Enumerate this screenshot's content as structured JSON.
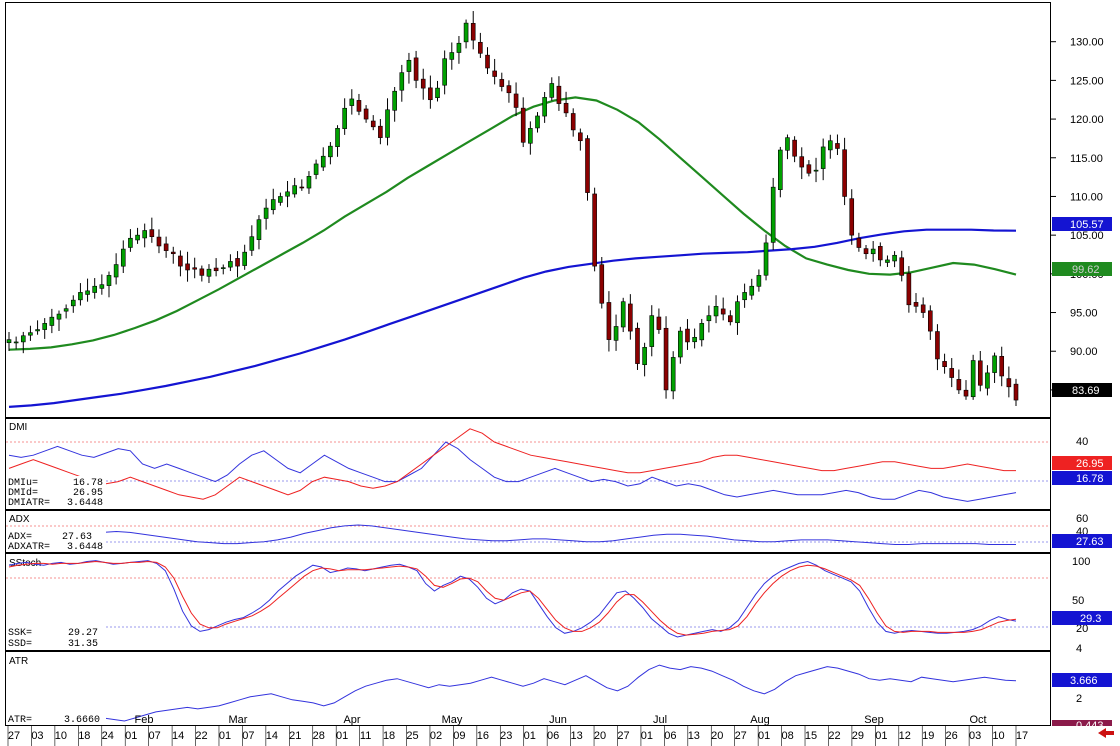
{
  "chart_data": [
    {
      "type": "candlestick",
      "panel": "price",
      "ylim": [
        81.5,
        135
      ],
      "y_ticks": [
        "130.00",
        "125.00",
        "120.00",
        "115.00",
        "110.00",
        "105.00",
        "100.00",
        "95.00",
        "90.00",
        "85.00"
      ],
      "last_price_label": "83.69",
      "colors": {
        "up": "#00a000",
        "down": "#8b0000",
        "ma_short": "#1f8a1f",
        "ma_long": "#1414d2"
      },
      "ohlc_close": [
        91.5,
        91.2,
        92.0,
        92.4,
        92.8,
        93.6,
        94.4,
        94.8,
        95.5,
        96.6,
        97.6,
        97.8,
        98.4,
        98.6,
        99.8,
        101.2,
        103.2,
        104.6,
        105.0,
        105.6,
        104.8,
        103.6,
        103.0,
        102.6,
        101.0,
        100.5,
        100.6,
        99.8,
        100.6,
        100.4,
        100.8,
        101.6,
        101.0,
        102.8,
        104.8,
        107.0,
        108.5,
        109.6,
        110.0,
        110.6,
        111.4,
        111.2,
        112.6,
        114.2,
        115.2,
        116.5,
        118.8,
        121.4,
        122.6,
        121.0,
        120.0,
        119.0,
        117.6,
        121.2,
        123.6,
        126.0,
        127.6,
        125.0,
        124.0,
        122.5,
        124.0,
        127.8,
        128.6,
        129.8,
        132.4,
        130.2,
        128.5,
        126.6,
        125.5,
        124.2,
        123.4,
        121.5,
        117.0,
        118.8,
        120.4,
        122.8,
        124.6,
        122.0,
        120.8,
        118.6,
        117.2,
        110.5,
        101.0,
        96.2,
        91.5,
        93.2,
        96.4,
        92.6,
        88.4,
        90.5,
        94.6,
        92.8,
        85.0,
        89.2,
        92.6,
        91.2,
        91.8,
        93.6,
        94.6,
        95.8,
        94.8,
        93.8,
        96.4,
        97.6,
        98.4,
        99.8,
        104.0,
        111.2,
        116.0,
        117.6,
        115.2,
        113.8,
        113.0,
        113.4,
        116.4,
        117.2,
        116.2,
        110.0,
        105.0,
        103.4,
        102.6,
        103.2,
        101.8,
        101.8,
        102.4,
        99.8,
        96.0,
        95.8,
        95.0,
        92.6,
        89.0,
        88.0,
        86.6,
        85.0,
        84.2,
        88.8,
        85.6,
        87.2,
        89.4,
        86.8,
        85.4,
        83.69
      ],
      "ma_short_last": "99.62",
      "ma_long_last": "105.57",
      "ma_short": [
        90.2,
        90.3,
        90.5,
        90.9,
        91.4,
        92.1,
        93.0,
        94.0,
        95.2,
        96.6,
        98.0,
        99.5,
        101.0,
        102.5,
        104.0,
        105.6,
        107.4,
        109.0,
        110.6,
        112.4,
        114.0,
        115.6,
        117.2,
        118.8,
        120.4,
        121.6,
        122.4,
        122.8,
        122.4,
        121.2,
        119.6,
        117.4,
        115.0,
        112.6,
        110.2,
        107.8,
        105.6,
        103.6,
        102.0,
        101.2,
        100.5,
        100.0,
        99.9,
        100.2,
        100.8,
        101.4,
        101.2,
        100.6,
        99.9
      ],
      "ma_long": [
        82.8,
        83.0,
        83.3,
        83.7,
        84.1,
        84.5,
        85.0,
        85.5,
        86.1,
        86.7,
        87.4,
        88.1,
        88.9,
        89.7,
        90.6,
        91.5,
        92.5,
        93.5,
        94.5,
        95.5,
        96.5,
        97.5,
        98.5,
        99.5,
        100.3,
        100.9,
        101.3,
        101.7,
        102.0,
        102.2,
        102.4,
        102.6,
        102.7,
        102.8,
        103.0,
        103.2,
        103.5,
        104.0,
        104.6,
        105.1,
        105.5,
        105.7,
        105.7,
        105.7,
        105.6,
        105.57
      ]
    },
    {
      "type": "line",
      "panel": "dmi",
      "series": [
        {
          "name": "DMI",
          "color": "#3333dd",
          "values": [
            34,
            33,
            34,
            36,
            38,
            36,
            34,
            33,
            35,
            37,
            36,
            30,
            28,
            30,
            28,
            26,
            24,
            22,
            25,
            30,
            34,
            36,
            32,
            28,
            26,
            30,
            34,
            31,
            28,
            26,
            24,
            22,
            22,
            25,
            28,
            34,
            40,
            37,
            32,
            28,
            24,
            22,
            22,
            24,
            26,
            28,
            26,
            24,
            22,
            23,
            22,
            20,
            21,
            24,
            22,
            20,
            21,
            20,
            18,
            16,
            15,
            16,
            17,
            18,
            17,
            16,
            16,
            16,
            17,
            18,
            17,
            15,
            14,
            14,
            16,
            18,
            17,
            15,
            14,
            13,
            14,
            15,
            16,
            17
          ]
        },
        {
          "name": "DMI",
          "color": "#ee2222",
          "values": [
            28,
            30,
            32,
            30,
            28,
            26,
            24,
            22,
            21,
            22,
            24,
            22,
            20,
            18,
            16,
            15,
            14,
            16,
            20,
            24,
            22,
            20,
            18,
            16,
            18,
            22,
            24,
            23,
            22,
            20,
            19,
            20,
            22,
            26,
            30,
            34,
            38,
            42,
            46,
            44,
            40,
            38,
            36,
            34,
            33,
            32,
            31,
            30,
            29,
            28,
            27,
            26,
            26,
            27,
            28,
            29,
            30,
            31,
            33,
            34,
            34,
            33,
            32,
            31,
            30,
            29,
            28,
            27,
            27,
            28,
            29,
            30,
            31,
            31,
            30,
            29,
            28,
            28,
            29,
            30,
            29,
            28,
            27,
            27
          ]
        }
      ],
      "level": "40",
      "ylim": [
        10,
        50
      ],
      "readouts": {
        "DMIu": "16.78",
        "DMId": "26.95",
        "DMIATR": "3.6448"
      },
      "badges": {
        "red": "26.95",
        "blue": "16.78"
      }
    },
    {
      "type": "line",
      "panel": "adx",
      "series": [
        {
          "name": "ADX",
          "color": "#3333dd",
          "values": [
            26,
            28,
            30,
            32,
            34,
            36,
            38,
            40,
            41,
            40,
            38,
            36,
            34,
            32,
            30,
            29,
            28,
            28,
            29,
            30,
            32,
            35,
            39,
            42,
            45,
            47,
            48,
            47,
            45,
            43,
            41,
            39,
            37,
            35,
            33,
            32,
            31,
            31,
            32,
            33,
            33,
            32,
            31,
            30,
            30,
            31,
            33,
            35,
            37,
            38,
            38,
            37,
            36,
            34,
            32,
            31,
            30,
            30,
            31,
            32,
            32,
            32,
            31,
            30,
            29,
            28,
            27,
            27,
            28,
            28,
            28,
            28,
            28,
            27,
            27,
            27
          ]
        }
      ],
      "y_ticks": [
        "60",
        "40",
        "20"
      ],
      "ylim": [
        20,
        62
      ],
      "readouts": {
        "ADX": "27.63",
        "ADXATR": "3.6448"
      },
      "badge": "27.63"
    },
    {
      "type": "line",
      "panel": "sstoch",
      "series": [
        {
          "name": "SSK",
          "color": "#3333dd",
          "values": [
            90,
            92,
            93,
            91,
            90,
            92,
            93,
            91,
            92,
            94,
            95,
            93,
            91,
            92,
            93,
            94,
            95,
            92,
            84,
            64,
            40,
            24,
            18,
            20,
            24,
            28,
            31,
            33,
            38,
            44,
            52,
            62,
            70,
            78,
            84,
            90,
            88,
            82,
            84,
            87,
            86,
            84,
            86,
            88,
            90,
            91,
            88,
            84,
            70,
            62,
            68,
            72,
            78,
            75,
            66,
            54,
            48,
            52,
            60,
            64,
            62,
            48,
            34,
            22,
            16,
            18,
            22,
            28,
            36,
            48,
            60,
            62,
            54,
            44,
            32,
            24,
            16,
            12,
            14,
            16,
            18,
            20,
            18,
            22,
            30,
            44,
            58,
            70,
            78,
            84,
            88,
            92,
            94,
            90,
            84,
            80,
            76,
            72,
            62,
            44,
            28,
            18,
            16,
            18,
            19,
            18,
            17,
            16,
            16,
            17,
            18,
            20,
            24,
            30,
            34,
            31,
            29.27
          ]
        },
        {
          "name": "SSD",
          "color": "#ee2222",
          "values": [
            88,
            90,
            91,
            92,
            92,
            91,
            92,
            92,
            92,
            93,
            94,
            93,
            92,
            92,
            93,
            93,
            94,
            93,
            88,
            76,
            56,
            38,
            26,
            22,
            22,
            26,
            29,
            32,
            35,
            40,
            46,
            54,
            62,
            70,
            78,
            84,
            87,
            86,
            84,
            85,
            85,
            85,
            86,
            87,
            88,
            89,
            88,
            86,
            78,
            68,
            66,
            70,
            75,
            76,
            72,
            62,
            54,
            52,
            56,
            60,
            62,
            54,
            42,
            30,
            22,
            18,
            18,
            22,
            28,
            38,
            50,
            58,
            58,
            50,
            40,
            30,
            22,
            16,
            14,
            15,
            16,
            18,
            19,
            20,
            24,
            34,
            48,
            60,
            70,
            78,
            84,
            88,
            90,
            89,
            86,
            82,
            78,
            74,
            68,
            54,
            38,
            24,
            18,
            17,
            18,
            18,
            18,
            17,
            17,
            17,
            17,
            18,
            20,
            24,
            28,
            30,
            31.35
          ]
        }
      ],
      "y_ticks": [
        "100",
        "50",
        "20"
      ],
      "ylim": [
        0,
        100
      ],
      "readouts": {
        "SSK": "29.27",
        "SSD": "31.35"
      },
      "badge": "29.3"
    },
    {
      "type": "line",
      "panel": "atr",
      "series": [
        {
          "name": "ATR",
          "color": "#3333dd",
          "values": [
            0.8,
            0.9,
            1.0,
            1.1,
            1.2,
            1.1,
            1.0,
            1.1,
            1.2,
            1.2,
            1.1,
            1.0,
            1.2,
            1.4,
            1.6,
            1.7,
            1.8,
            1.9,
            1.8,
            1.9,
            2.0,
            2.2,
            2.4,
            2.6,
            2.7,
            2.8,
            2.6,
            2.4,
            2.3,
            2.2,
            2.0,
            2.2,
            2.6,
            3.0,
            3.3,
            3.5,
            3.7,
            3.8,
            3.6,
            3.4,
            3.2,
            3.4,
            3.3,
            3.4,
            3.5,
            3.7,
            3.9,
            3.7,
            3.5,
            3.3,
            3.5,
            3.8,
            3.6,
            3.4,
            3.7,
            4.0,
            3.6,
            3.2,
            3.0,
            3.3,
            3.9,
            4.4,
            4.7,
            4.5,
            4.4,
            4.6,
            4.5,
            4.3,
            4.0,
            3.7,
            3.3,
            3.0,
            2.8,
            3.1,
            3.6,
            4.0,
            4.2,
            4.4,
            4.6,
            4.5,
            4.3,
            4.1,
            3.8,
            3.7,
            3.8,
            3.7,
            3.6,
            3.9,
            3.8,
            3.7,
            3.6,
            3.7,
            3.8,
            3.9,
            3.8,
            3.7,
            3.666
          ]
        }
      ],
      "y_ticks": [
        "4",
        "2"
      ],
      "ylim": [
        0.8,
        5.5
      ],
      "readouts": {
        "ATR": "3.6660"
      },
      "badges": {
        "blue": "3.666",
        "bottom": "0.443"
      }
    }
  ],
  "panels": {
    "dmi": "DMI",
    "adx": "ADX",
    "sstoch": "SStoch",
    "atr": "ATR"
  },
  "x_axis": {
    "days": [
      "27",
      "03",
      "10",
      "18",
      "24",
      "01",
      "07",
      "14",
      "22",
      "01",
      "07",
      "14",
      "21",
      "28",
      "01",
      "11",
      "18",
      "25",
      "02",
      "09",
      "16",
      "23",
      "01",
      "06",
      "13",
      "20",
      "27",
      "01",
      "06",
      "13",
      "20",
      "27",
      "01",
      "08",
      "15",
      "22",
      "29",
      "01",
      "12",
      "19",
      "26",
      "03",
      "10",
      "17"
    ],
    "months": [
      "Feb",
      "Mar",
      "Apr",
      "May",
      "Jun",
      "Jul",
      "Aug",
      "Sep",
      "Oct"
    ]
  },
  "arrow_icon": "left-arrow-icon"
}
